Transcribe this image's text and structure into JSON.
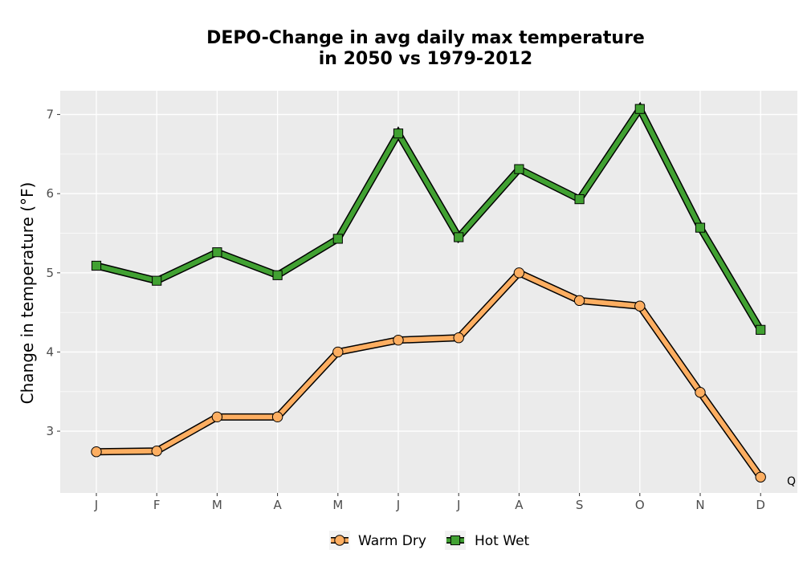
{
  "chart_data": {
    "type": "line",
    "title_line1": "DEPO-Change in avg daily max temperature",
    "title_line2": "in 2050 vs 1979-2012",
    "xlabel": "",
    "ylabel": "Change in temperature (°F)",
    "categories": [
      "J",
      "F",
      "M",
      "A",
      "M",
      "J",
      "J",
      "A",
      "S",
      "O",
      "N",
      "D"
    ],
    "ylim": [
      2.22,
      7.3
    ],
    "yticks": [
      3,
      4,
      5,
      6,
      7
    ],
    "grid": true,
    "legend_position": "bottom",
    "series": [
      {
        "name": "Warm Dry",
        "values": [
          2.74,
          2.75,
          3.18,
          3.18,
          4.0,
          4.15,
          4.18,
          5.0,
          4.65,
          4.58,
          3.49,
          2.42
        ],
        "color": "#fdae61",
        "marker": "circle"
      },
      {
        "name": "Hot Wet",
        "values": [
          5.09,
          4.9,
          5.26,
          4.97,
          5.43,
          6.76,
          5.45,
          6.31,
          5.93,
          7.07,
          5.57,
          4.28
        ],
        "color": "#41a132",
        "marker": "square"
      }
    ],
    "corner_label": "Q",
    "panel_bg": "#ebebeb"
  }
}
